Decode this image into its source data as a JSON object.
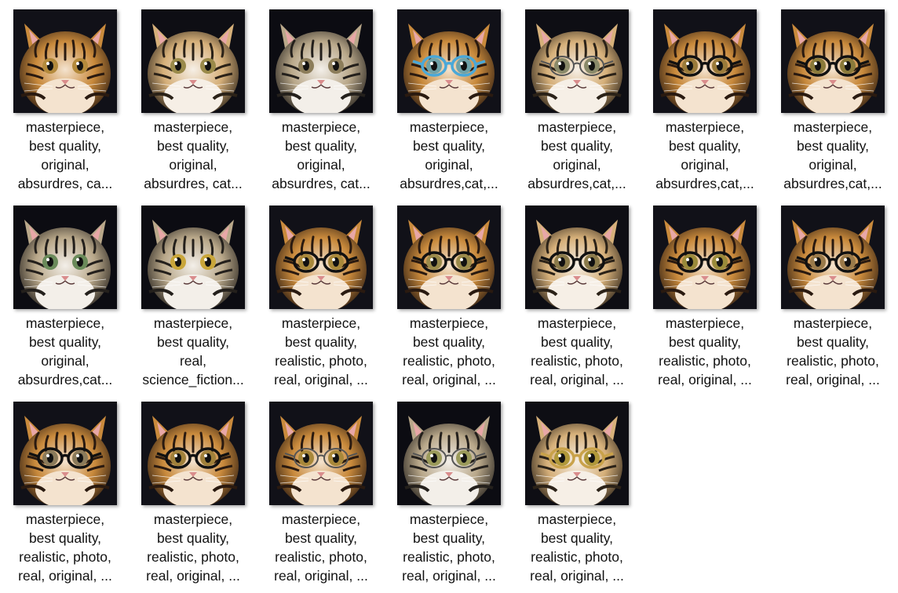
{
  "files": [
    {
      "lines": [
        "masterpiece,",
        "best quality,",
        "original,",
        "absurdres, ca..."
      ],
      "glasses": "none",
      "eye": "#b48a3c",
      "tone": "warm"
    },
    {
      "lines": [
        "masterpiece,",
        "best quality,",
        "original,",
        "absurdres, cat..."
      ],
      "glasses": "none",
      "eye": "#9a8a4a",
      "tone": "light"
    },
    {
      "lines": [
        "masterpiece,",
        "best quality,",
        "original,",
        "absurdres, cat..."
      ],
      "glasses": "none",
      "eye": "#8c7d5a",
      "tone": "gray"
    },
    {
      "lines": [
        "masterpiece,",
        "best quality,",
        "original,",
        "absurdres,cat,..."
      ],
      "glasses": "blue",
      "eye": "#6fa2a8",
      "tone": "warm"
    },
    {
      "lines": [
        "masterpiece,",
        "best quality,",
        "original,",
        "absurdres,cat,..."
      ],
      "glasses": "thin",
      "eye": "#8a8a6a",
      "tone": "light"
    },
    {
      "lines": [
        "masterpiece,",
        "best quality,",
        "original,",
        "absurdres,cat,..."
      ],
      "glasses": "black",
      "eye": "#9a7a3a",
      "tone": "warm"
    },
    {
      "lines": [
        "masterpiece,",
        "best quality,",
        "original,",
        "absurdres,cat,..."
      ],
      "glasses": "black",
      "eye": "#8a7a3a",
      "tone": "warm"
    },
    {
      "lines": [
        "masterpiece,",
        "best quality,",
        "original,",
        "absurdres,cat..."
      ],
      "glasses": "none",
      "eye": "#6a8a5a",
      "tone": "gray"
    },
    {
      "lines": [
        "masterpiece,",
        "best quality,",
        "real,",
        "science_fiction..."
      ],
      "glasses": "none",
      "eye": "#c9a63a",
      "tone": "gray"
    },
    {
      "lines": [
        "masterpiece,",
        "best quality,",
        "realistic, photo,",
        "real, original, ..."
      ],
      "glasses": "black",
      "eye": "#a8883a",
      "tone": "warm"
    },
    {
      "lines": [
        "masterpiece,",
        "best quality,",
        "realistic, photo,",
        "real, original, ..."
      ],
      "glasses": "black",
      "eye": "#9a8a4a",
      "tone": "warm"
    },
    {
      "lines": [
        "masterpiece,",
        "best quality,",
        "realistic, photo,",
        "real, original, ..."
      ],
      "glasses": "black",
      "eye": "#8a7a4a",
      "tone": "light"
    },
    {
      "lines": [
        "masterpiece,",
        "best quality,",
        "realistic, photo,",
        "real, original, ..."
      ],
      "glasses": "black",
      "eye": "#9a8a3a",
      "tone": "warm"
    },
    {
      "lines": [
        "masterpiece,",
        "best quality,",
        "realistic, photo,",
        "real, original, ..."
      ],
      "glasses": "black",
      "eye": "#9a7a4a",
      "tone": "warm"
    },
    {
      "lines": [
        "masterpiece,",
        "best quality,",
        "realistic, photo,",
        "real, original, ..."
      ],
      "glasses": "black",
      "eye": "#8a7a5a",
      "tone": "warm"
    },
    {
      "lines": [
        "masterpiece,",
        "best quality,",
        "realistic, photo,",
        "real, original, ..."
      ],
      "glasses": "black",
      "eye": "#a0803a",
      "tone": "warm"
    },
    {
      "lines": [
        "masterpiece,",
        "best quality,",
        "realistic, photo,",
        "real, original, ..."
      ],
      "glasses": "thin",
      "eye": "#a8883a",
      "tone": "warm"
    },
    {
      "lines": [
        "masterpiece,",
        "best quality,",
        "realistic, photo,",
        "real, original, ..."
      ],
      "glasses": "thin",
      "eye": "#9a9a5a",
      "tone": "gray"
    },
    {
      "lines": [
        "masterpiece,",
        "best quality,",
        "realistic, photo,",
        "real, original, ..."
      ],
      "glasses": "gold",
      "eye": "#b0983a",
      "tone": "light"
    }
  ]
}
